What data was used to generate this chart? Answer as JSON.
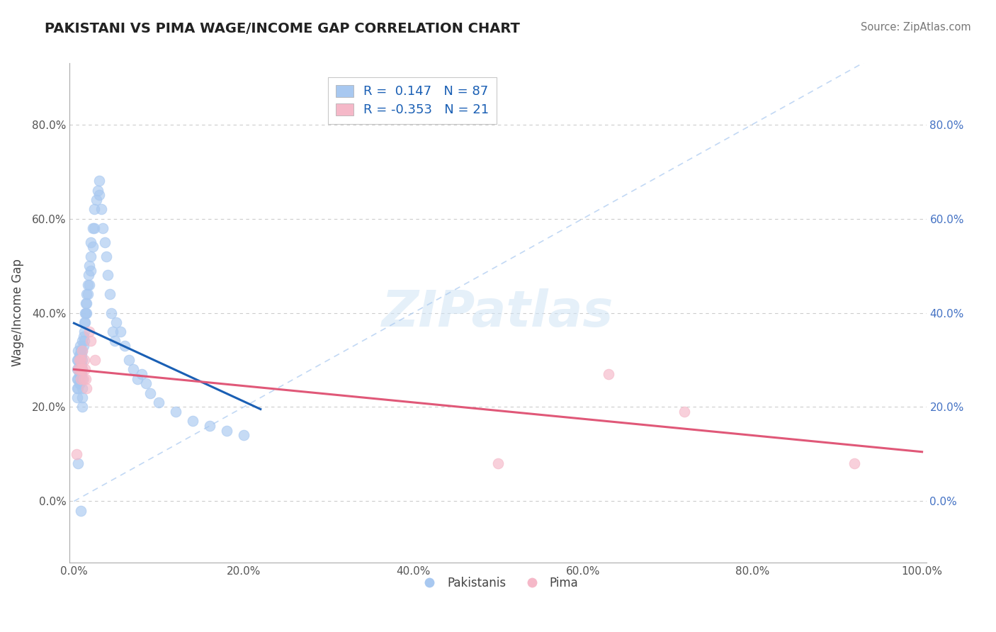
{
  "title": "PAKISTANI VS PIMA WAGE/INCOME GAP CORRELATION CHART",
  "source": "Source: ZipAtlas.com",
  "ylabel": "Wage/Income Gap",
  "xlim": [
    -0.005,
    1.005
  ],
  "ylim": [
    -0.13,
    0.93
  ],
  "xticks": [
    0.0,
    0.2,
    0.4,
    0.6,
    0.8,
    1.0
  ],
  "yticks": [
    0.0,
    0.2,
    0.4,
    0.6,
    0.8
  ],
  "xticklabels": [
    "0.0%",
    "20.0%",
    "40.0%",
    "60.0%",
    "80.0%",
    "100.0%"
  ],
  "yticklabels_left": [
    "0.0%",
    "20.0%",
    "40.0%",
    "60.0%",
    "80.0%"
  ],
  "yticklabels_right": [
    "0.0%",
    "20.0%",
    "40.0%",
    "60.0%",
    "80.0%"
  ],
  "pakistani_color": "#a8c8f0",
  "pima_color": "#f5b8c8",
  "pakistani_line_color": "#1a5fb4",
  "pima_line_color": "#e05878",
  "diagonal_color": "#a8c8f0",
  "legend_R_color": "#1a5fb4",
  "background_color": "#ffffff",
  "grid_color": "#cccccc",
  "pakistani_x": [
    0.004,
    0.004,
    0.004,
    0.004,
    0.004,
    0.005,
    0.005,
    0.005,
    0.005,
    0.005,
    0.006,
    0.006,
    0.006,
    0.006,
    0.007,
    0.007,
    0.007,
    0.007,
    0.007,
    0.008,
    0.008,
    0.008,
    0.009,
    0.009,
    0.009,
    0.01,
    0.01,
    0.01,
    0.01,
    0.01,
    0.01,
    0.01,
    0.01,
    0.011,
    0.011,
    0.012,
    0.012,
    0.012,
    0.013,
    0.013,
    0.014,
    0.014,
    0.015,
    0.015,
    0.015,
    0.016,
    0.016,
    0.017,
    0.018,
    0.018,
    0.02,
    0.02,
    0.02,
    0.022,
    0.022,
    0.024,
    0.024,
    0.026,
    0.028,
    0.03,
    0.03,
    0.032,
    0.034,
    0.036,
    0.038,
    0.04,
    0.042,
    0.044,
    0.046,
    0.048,
    0.05,
    0.055,
    0.06,
    0.065,
    0.07,
    0.075,
    0.08,
    0.085,
    0.09,
    0.1,
    0.12,
    0.14,
    0.16,
    0.18,
    0.2,
    0.005,
    0.008
  ],
  "pakistani_y": [
    0.3,
    0.28,
    0.26,
    0.24,
    0.22,
    0.32,
    0.3,
    0.28,
    0.26,
    0.24,
    0.31,
    0.29,
    0.27,
    0.25,
    0.33,
    0.31,
    0.29,
    0.27,
    0.25,
    0.32,
    0.3,
    0.28,
    0.31,
    0.29,
    0.27,
    0.34,
    0.32,
    0.3,
    0.28,
    0.26,
    0.24,
    0.22,
    0.2,
    0.35,
    0.33,
    0.38,
    0.36,
    0.34,
    0.4,
    0.38,
    0.42,
    0.4,
    0.44,
    0.42,
    0.4,
    0.46,
    0.44,
    0.48,
    0.5,
    0.46,
    0.55,
    0.52,
    0.49,
    0.58,
    0.54,
    0.62,
    0.58,
    0.64,
    0.66,
    0.68,
    0.65,
    0.62,
    0.58,
    0.55,
    0.52,
    0.48,
    0.44,
    0.4,
    0.36,
    0.34,
    0.38,
    0.36,
    0.33,
    0.3,
    0.28,
    0.26,
    0.27,
    0.25,
    0.23,
    0.21,
    0.19,
    0.17,
    0.16,
    0.15,
    0.14,
    0.08,
    -0.02
  ],
  "pima_x": [
    0.003,
    0.005,
    0.006,
    0.007,
    0.008,
    0.008,
    0.009,
    0.01,
    0.01,
    0.011,
    0.012,
    0.013,
    0.014,
    0.015,
    0.018,
    0.02,
    0.025,
    0.5,
    0.63,
    0.72,
    0.92
  ],
  "pima_y": [
    0.1,
    0.28,
    0.3,
    0.28,
    0.3,
    0.26,
    0.28,
    0.32,
    0.28,
    0.26,
    0.3,
    0.28,
    0.26,
    0.24,
    0.36,
    0.34,
    0.3,
    0.08,
    0.27,
    0.19,
    0.08
  ],
  "pakistani_R": 0.147,
  "pakistani_N": 87,
  "pima_R": -0.353,
  "pima_N": 21
}
